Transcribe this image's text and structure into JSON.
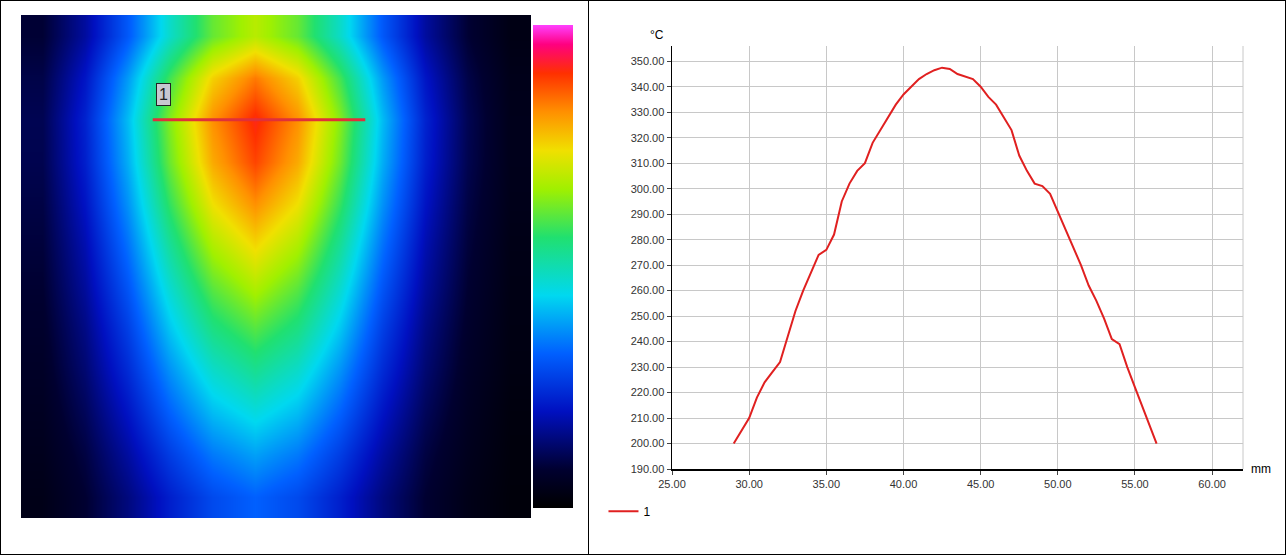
{
  "chart_data": [
    {
      "type": "heatmap",
      "cells": [
        [
          50,
          82,
          131,
          192,
          241,
          266,
          241,
          192,
          131,
          82,
          50,
          32
        ],
        [
          56,
          95,
          156,
          231,
          292,
          322,
          292,
          231,
          156,
          95,
          56,
          35
        ],
        [
          59,
          102,
          168,
          250,
          315,
          348,
          315,
          250,
          168,
          102,
          59,
          36
        ],
        [
          58,
          100,
          163,
          243,
          306,
          338,
          306,
          243,
          163,
          100,
          58,
          36
        ],
        [
          55,
          94,
          153,
          227,
          286,
          315,
          286,
          227,
          153,
          94,
          55,
          35
        ],
        [
          52,
          87,
          141,
          208,
          262,
          289,
          262,
          208,
          141,
          87,
          52,
          33
        ],
        [
          49,
          81,
          129,
          190,
          238,
          263,
          238,
          190,
          129,
          81,
          49,
          32
        ],
        [
          46,
          74,
          117,
          172,
          215,
          236,
          215,
          172,
          117,
          74,
          46,
          31
        ],
        [
          43,
          68,
          106,
          153,
          191,
          210,
          191,
          153,
          106,
          68,
          43,
          30
        ],
        [
          40,
          61,
          94,
          135,
          168,
          184,
          168,
          135,
          94,
          61,
          40,
          28
        ],
        [
          37,
          54,
          82,
          116,
          144,
          158,
          144,
          116,
          82,
          54,
          37,
          27
        ],
        [
          34,
          49,
          72,
          100,
          123,
          135,
          123,
          100,
          72,
          49,
          34,
          26
        ]
      ],
      "color_range": [
        20,
        380
      ],
      "tick_labels": false,
      "profile_line": {
        "label": "1",
        "x": [
          2.6,
          7.6
        ],
        "y": 2,
        "color": "#e0303a"
      }
    },
    {
      "type": "line",
      "x": [
        29.0,
        29.5,
        30.0,
        30.5,
        31.0,
        31.5,
        32.0,
        32.5,
        33.0,
        33.5,
        34.0,
        34.5,
        35.0,
        35.5,
        36.0,
        36.5,
        37.0,
        37.5,
        38.0,
        38.5,
        39.0,
        39.5,
        40.0,
        40.5,
        41.0,
        41.5,
        42.0,
        42.5,
        43.0,
        43.5,
        44.0,
        44.5,
        45.0,
        45.5,
        46.0,
        46.5,
        47.0,
        47.5,
        48.0,
        48.5,
        49.0,
        49.5,
        50.0,
        50.5,
        51.0,
        51.5,
        52.0,
        52.5,
        53.0,
        53.5,
        54.0,
        54.5,
        55.0,
        55.5,
        56.0,
        56.4
      ],
      "series": [
        {
          "name": "1",
          "color": "#e02020",
          "values": [
            200,
            205,
            210,
            218,
            224,
            228,
            232,
            242,
            252,
            260,
            267,
            274,
            276,
            282,
            295,
            302,
            307,
            310,
            318,
            323,
            328,
            333,
            337,
            340,
            343,
            345,
            346.5,
            347.5,
            347,
            345,
            344,
            343,
            340,
            336,
            333,
            328,
            323,
            313,
            307,
            302,
            301,
            298,
            291,
            284,
            277,
            270,
            262,
            256,
            249,
            241,
            239,
            230,
            222,
            214,
            206,
            200
          ]
        }
      ],
      "xlim": [
        25,
        62
      ],
      "ylim": [
        190,
        356
      ],
      "xticks": [
        {
          "value": 25,
          "label": "25.00"
        },
        {
          "value": 30,
          "label": "30.00"
        },
        {
          "value": 35,
          "label": "35.00"
        },
        {
          "value": 40,
          "label": "40.00"
        },
        {
          "value": 45,
          "label": "45.00"
        },
        {
          "value": 50,
          "label": "50.00"
        },
        {
          "value": 55,
          "label": "55.00"
        },
        {
          "value": 60,
          "label": "60.00"
        }
      ],
      "yticks": [
        {
          "value": 190,
          "label": "190.00"
        },
        {
          "value": 200,
          "label": "200.00"
        },
        {
          "value": 210,
          "label": "210.00"
        },
        {
          "value": 220,
          "label": "220.00"
        },
        {
          "value": 230,
          "label": "230.00"
        },
        {
          "value": 240,
          "label": "240.00"
        },
        {
          "value": 250,
          "label": "250.00"
        },
        {
          "value": 260,
          "label": "260.00"
        },
        {
          "value": 270,
          "label": "270.00"
        },
        {
          "value": 280,
          "label": "280.00"
        },
        {
          "value": 290,
          "label": "290.00"
        },
        {
          "value": 300,
          "label": "300.00"
        },
        {
          "value": 310,
          "label": "310.00"
        },
        {
          "value": 320,
          "label": "320.00"
        },
        {
          "value": 330,
          "label": "330.00"
        },
        {
          "value": 340,
          "label": "340.00"
        },
        {
          "value": 350,
          "label": "350.00"
        }
      ],
      "x_label": "mm",
      "y_label": "°C",
      "grid": true,
      "legend": "lower left"
    }
  ]
}
